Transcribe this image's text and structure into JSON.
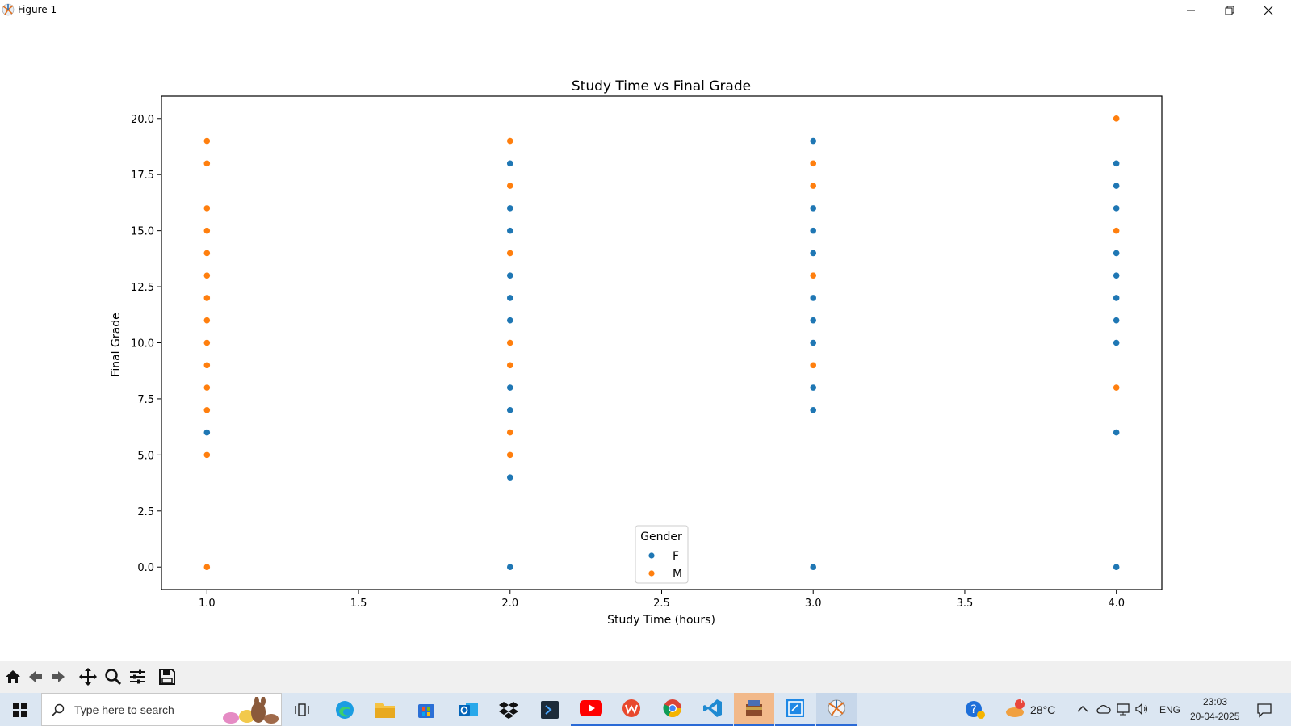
{
  "window": {
    "title": "Figure 1"
  },
  "colors": {
    "F": "#1f77b4",
    "M": "#ff7f0e",
    "taskbar_bg": "#dbe6f2",
    "toolbar_bg": "#f0f0f0"
  },
  "chart_data": {
    "type": "scatter",
    "title": "Study Time vs Final Grade",
    "xlabel": "Study Time (hours)",
    "ylabel": "Final Grade",
    "xlim": [
      0.85,
      4.15
    ],
    "ylim": [
      -1.0,
      21.0
    ],
    "x_ticks": [
      "1.0",
      "1.5",
      "2.0",
      "2.5",
      "3.0",
      "3.5",
      "4.0"
    ],
    "y_ticks": [
      "0.0",
      "2.5",
      "5.0",
      "7.5",
      "10.0",
      "12.5",
      "15.0",
      "17.5",
      "20.0"
    ],
    "legend": {
      "title": "Gender",
      "placement": "lower-center"
    },
    "series": [
      {
        "name": "F",
        "color": "#1f77b4",
        "points": [
          [
            1,
            6
          ],
          [
            1,
            0
          ],
          [
            2,
            18
          ],
          [
            2,
            16
          ],
          [
            2,
            15
          ],
          [
            2,
            13
          ],
          [
            2,
            12
          ],
          [
            2,
            11
          ],
          [
            2,
            8
          ],
          [
            2,
            7
          ],
          [
            2,
            4
          ],
          [
            2,
            0
          ],
          [
            3,
            19
          ],
          [
            3,
            16
          ],
          [
            3,
            15
          ],
          [
            3,
            14
          ],
          [
            3,
            12
          ],
          [
            3,
            11
          ],
          [
            3,
            10
          ],
          [
            3,
            8
          ],
          [
            3,
            7
          ],
          [
            3,
            0
          ],
          [
            4,
            18
          ],
          [
            4,
            17
          ],
          [
            4,
            16
          ],
          [
            4,
            14
          ],
          [
            4,
            13
          ],
          [
            4,
            12
          ],
          [
            4,
            11
          ],
          [
            4,
            10
          ],
          [
            4,
            6
          ],
          [
            4,
            0
          ]
        ]
      },
      {
        "name": "M",
        "color": "#ff7f0e",
        "points": [
          [
            1,
            19
          ],
          [
            1,
            18
          ],
          [
            1,
            16
          ],
          [
            1,
            15
          ],
          [
            1,
            14
          ],
          [
            1,
            13
          ],
          [
            1,
            12
          ],
          [
            1,
            11
          ],
          [
            1,
            10
          ],
          [
            1,
            9
          ],
          [
            1,
            8
          ],
          [
            1,
            7
          ],
          [
            1,
            5
          ],
          [
            1,
            0
          ],
          [
            2,
            19
          ],
          [
            2,
            17
          ],
          [
            2,
            14
          ],
          [
            2,
            10
          ],
          [
            2,
            9
          ],
          [
            2,
            6
          ],
          [
            2,
            5
          ],
          [
            3,
            18
          ],
          [
            3,
            17
          ],
          [
            3,
            13
          ],
          [
            3,
            9
          ],
          [
            4,
            20
          ],
          [
            4,
            15
          ],
          [
            4,
            8
          ]
        ]
      }
    ]
  },
  "toolbar": {
    "buttons": [
      "home-icon",
      "back-icon",
      "forward-icon",
      "pan-icon",
      "zoom-icon",
      "configure-icon",
      "save-icon"
    ]
  },
  "taskbar": {
    "search_placeholder": "Type here to search",
    "weather_temp": "28°C",
    "weather_badge": "1",
    "language": "ENG",
    "time": "23:03",
    "date": "20-04-2025"
  }
}
